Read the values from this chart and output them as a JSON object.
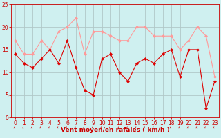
{
  "x": [
    0,
    1,
    2,
    3,
    4,
    5,
    6,
    7,
    8,
    9,
    10,
    11,
    12,
    13,
    14,
    15,
    16,
    17,
    18,
    19,
    20,
    21,
    22,
    23
  ],
  "wind_avg": [
    14,
    12,
    11,
    13,
    15,
    12,
    17,
    11,
    6,
    5,
    13,
    14,
    10,
    8,
    12,
    13,
    12,
    14,
    15,
    9,
    15,
    15,
    2,
    8
  ],
  "wind_gust": [
    17,
    14,
    14,
    17,
    15,
    19,
    20,
    22,
    14,
    19,
    19,
    18,
    17,
    17,
    20,
    20,
    18,
    18,
    18,
    15,
    17,
    20,
    18,
    9
  ],
  "ylim": [
    0,
    25
  ],
  "xlim": [
    -0.5,
    23.5
  ],
  "yticks": [
    0,
    5,
    10,
    15,
    20,
    25
  ],
  "xticks": [
    0,
    1,
    2,
    3,
    4,
    5,
    6,
    7,
    8,
    9,
    10,
    11,
    12,
    13,
    14,
    15,
    16,
    17,
    18,
    19,
    20,
    21,
    22,
    23
  ],
  "xlabel": "Vent moyen/en rafales ( km/h )",
  "bg_color": "#cff0f0",
  "grid_color": "#b0c8c8",
  "line_avg_color": "#dd0000",
  "line_gust_color": "#ff9999",
  "marker_size": 2.5,
  "xlabel_color": "#cc0000",
  "tick_color": "#cc0000",
  "arrow_color": "#cc0000",
  "label_fontsize": 6.5,
  "tick_fontsize": 5.5
}
